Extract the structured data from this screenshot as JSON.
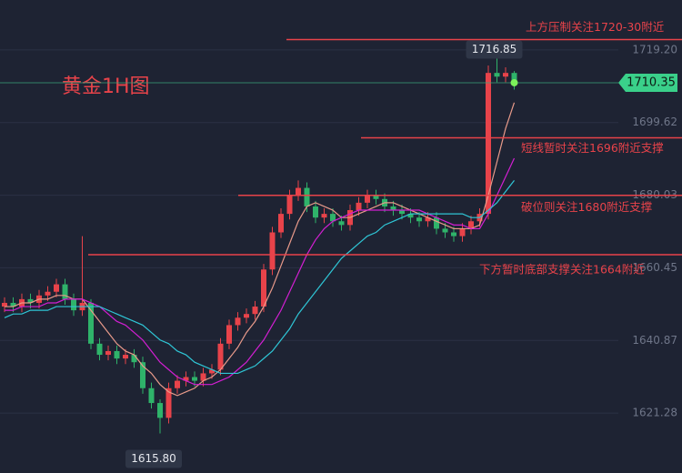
{
  "chart_data": {
    "type": "candlestick",
    "title": "黄金1H图",
    "up_color": "#e8434a",
    "down_color": "#2fb36a",
    "open": [
      1650,
      1651,
      1650,
      1652,
      1651,
      1653,
      1654,
      1656,
      1652,
      1649,
      1651,
      1640,
      1637,
      1638,
      1636,
      1637,
      1635,
      1628,
      1624,
      1620,
      1628,
      1630,
      1631,
      1630,
      1632,
      1633,
      1640,
      1645,
      1647,
      1648,
      1650,
      1660,
      1670,
      1675,
      1680,
      1682,
      1677,
      1674,
      1675,
      1673,
      1672,
      1676,
      1678,
      1680,
      1679,
      1677,
      1676,
      1675,
      1674,
      1673,
      1674,
      1671,
      1670,
      1669,
      1671,
      1673,
      1675,
      1713,
      1712,
      1713
    ],
    "high": [
      1652.5,
      1652.5,
      1653.5,
      1653.5,
      1654.5,
      1655.5,
      1657.5,
      1657.5,
      1653.5,
      1669,
      1652,
      1641.5,
      1639.5,
      1639.5,
      1638.5,
      1638.5,
      1636.5,
      1629.5,
      1625,
      1629.5,
      1631.5,
      1632.5,
      1632.5,
      1633.5,
      1634.5,
      1641.5,
      1646.5,
      1648.5,
      1649.5,
      1651.5,
      1661.5,
      1671.5,
      1676.5,
      1681.5,
      1684,
      1683.5,
      1678.5,
      1676.5,
      1676.5,
      1674.5,
      1677.5,
      1679.5,
      1681.5,
      1681.5,
      1680.5,
      1678.5,
      1677.5,
      1676.5,
      1675.5,
      1675.5,
      1675.5,
      1672.5,
      1671.5,
      1672.5,
      1674.5,
      1676.5,
      1715,
      1716.85,
      1714.5,
      1713.5
    ],
    "low": [
      1648.5,
      1648.5,
      1648.5,
      1649.5,
      1649.5,
      1651.5,
      1652.5,
      1650.5,
      1647.5,
      1647.5,
      1638.5,
      1635.5,
      1635.5,
      1634.5,
      1634.5,
      1633.5,
      1626.5,
      1622.5,
      1615.8,
      1618.5,
      1626.5,
      1628.5,
      1628.5,
      1628.5,
      1630.5,
      1631.5,
      1638.5,
      1643.5,
      1645.5,
      1646.5,
      1648.5,
      1658.5,
      1668.5,
      1673.5,
      1678.5,
      1675.5,
      1672.5,
      1672.5,
      1671.5,
      1670.5,
      1670.5,
      1674.5,
      1676.5,
      1677.5,
      1675.5,
      1674.5,
      1673.5,
      1672.5,
      1671.5,
      1671.5,
      1669.5,
      1668.5,
      1667.5,
      1667.5,
      1669.5,
      1671.5,
      1673.5,
      1710.5,
      1710.5,
      1708.5
    ],
    "close": [
      1651,
      1650,
      1652,
      1651,
      1653,
      1654,
      1656,
      1652,
      1649,
      1651,
      1640,
      1637,
      1638,
      1636,
      1637,
      1635,
      1628,
      1624,
      1620,
      1628,
      1630,
      1631,
      1630,
      1632,
      1633,
      1640,
      1645,
      1647,
      1648,
      1650,
      1660,
      1670,
      1675,
      1680,
      1682,
      1677,
      1674,
      1675,
      1673,
      1672,
      1676,
      1678,
      1680,
      1679,
      1677,
      1676,
      1675,
      1674,
      1673,
      1674,
      1671,
      1670,
      1669,
      1671,
      1673,
      1675,
      1713,
      1712,
      1713,
      1710.35
    ],
    "series": [
      {
        "color": "#e89a8a",
        "values": [
          1650,
          1650,
          1651,
          1651,
          1652,
          1652,
          1653,
          1653,
          1652,
          1652,
          1649,
          1646,
          1643,
          1640,
          1638,
          1637,
          1634,
          1632,
          1629,
          1627,
          1626,
          1627,
          1628,
          1630,
          1631,
          1633,
          1636,
          1639,
          1643,
          1646,
          1650,
          1655,
          1661,
          1667,
          1673,
          1677,
          1678,
          1677,
          1676,
          1674,
          1674,
          1675,
          1676,
          1677,
          1678,
          1678,
          1677,
          1676,
          1675,
          1674,
          1673,
          1672,
          1671,
          1671,
          1671,
          1672,
          1680,
          1689,
          1698,
          1705
        ]
      },
      {
        "color": "#d21fd2",
        "values": [
          1649,
          1649,
          1650,
          1650,
          1650,
          1651,
          1651,
          1652,
          1652,
          1652,
          1651,
          1650,
          1648,
          1646,
          1645,
          1643,
          1641,
          1638,
          1635,
          1633,
          1631,
          1630,
          1629,
          1629,
          1629,
          1630,
          1631,
          1633,
          1635,
          1638,
          1641,
          1645,
          1649,
          1654,
          1659,
          1664,
          1668,
          1671,
          1673,
          1674,
          1675,
          1676,
          1676,
          1676,
          1676,
          1676,
          1676,
          1676,
          1676,
          1675,
          1674,
          1673,
          1672,
          1672,
          1671,
          1671,
          1675,
          1680,
          1685,
          1690
        ]
      },
      {
        "color": "#2fc6d6",
        "values": [
          1647,
          1648,
          1648,
          1649,
          1649,
          1649,
          1650,
          1650,
          1650,
          1650,
          1650,
          1650,
          1649,
          1648,
          1647,
          1646,
          1645,
          1643,
          1641,
          1640,
          1638,
          1637,
          1635,
          1634,
          1633,
          1632,
          1632,
          1632,
          1633,
          1634,
          1636,
          1638,
          1641,
          1644,
          1648,
          1651,
          1654,
          1657,
          1660,
          1663,
          1665,
          1667,
          1669,
          1670,
          1672,
          1673,
          1674,
          1675,
          1675,
          1675,
          1675,
          1675,
          1675,
          1675,
          1674,
          1674,
          1676,
          1678,
          1681,
          1684
        ]
      }
    ],
    "ylim": [
      1605.13,
      1732.66
    ],
    "yticks": [
      {
        "value": 1719.2,
        "label": "1719.20"
      },
      {
        "value": 1699.62,
        "label": "1699.62"
      },
      {
        "value": 1680.03,
        "label": "1680.03"
      },
      {
        "value": 1660.45,
        "label": "1660.45"
      },
      {
        "value": 1640.87,
        "label": "1640.87"
      },
      {
        "value": 1621.28,
        "label": "1621.28"
      }
    ],
    "grid": true,
    "last_price": 1710.35,
    "low_label": "1615.80",
    "levels": [
      {
        "value": 1722,
        "label": "上方压制关注1720-30附近"
      },
      {
        "value": 1695.5,
        "label": "短线暂时关注1696附近支撑"
      },
      {
        "value": 1680,
        "label": "破位则关注1680附近支撑"
      },
      {
        "value": 1664,
        "label": "下方暂时底部支撑关注1664附近"
      }
    ]
  }
}
